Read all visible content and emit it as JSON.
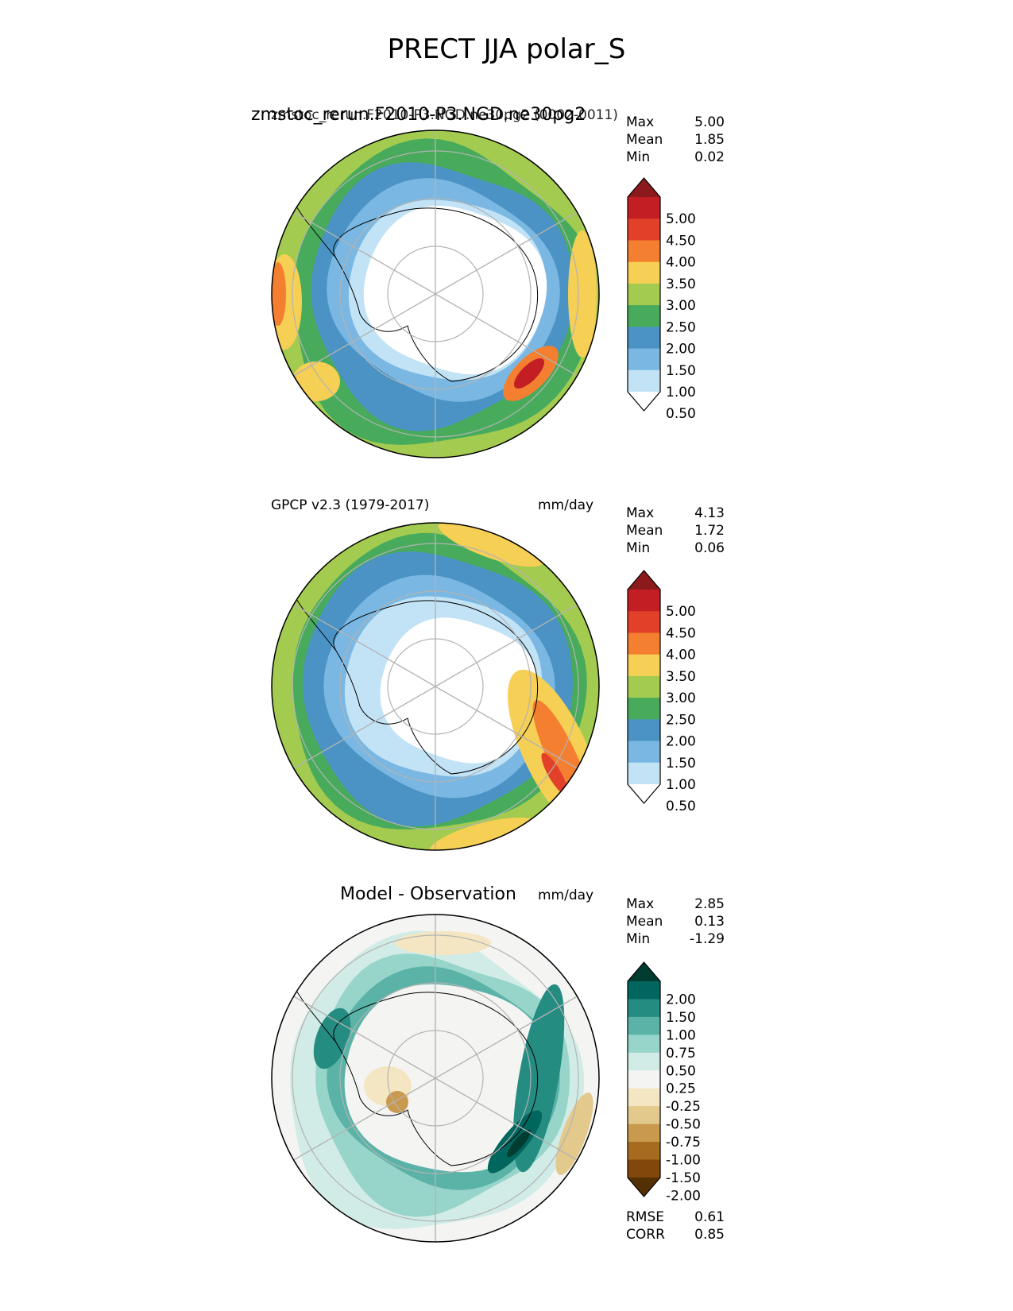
{
  "title": "PRECT JJA polar_S",
  "panels": [
    {
      "title_overlap_large": "zmstoc_rerun.F2010-P3.NGD.ne30pg2",
      "title_overlap_small": "zmstoc_rerun.F2010-P3.NGD.ne30pg2 (0002-0011)",
      "left_label": "",
      "units": "mm/day",
      "stats": [
        {
          "label": "Max",
          "value": "5.00"
        },
        {
          "label": "Mean",
          "value": "1.85"
        },
        {
          "label": "Min",
          "value": "0.02"
        }
      ],
      "colorbar": {
        "ticks": [
          "5.00",
          "4.50",
          "4.00",
          "3.50",
          "3.00",
          "2.50",
          "2.00",
          "1.50",
          "1.00",
          "0.50"
        ],
        "colors": [
          "#8c1a1d",
          "#c21e24",
          "#e3402a",
          "#f57f30",
          "#f6cf55",
          "#a3cb4f",
          "#48ab5c",
          "#4a93c4",
          "#7ab8e3",
          "#c2e3f6",
          "#ffffff"
        ]
      }
    },
    {
      "left_label": "GPCP v2.3 (1979-2017)",
      "units": "mm/day",
      "stats": [
        {
          "label": "Max",
          "value": "4.13"
        },
        {
          "label": "Mean",
          "value": "1.72"
        },
        {
          "label": "Min",
          "value": "0.06"
        }
      ],
      "colorbar": {
        "ticks": [
          "5.00",
          "4.50",
          "4.00",
          "3.50",
          "3.00",
          "2.50",
          "2.00",
          "1.50",
          "1.00",
          "0.50"
        ],
        "colors": [
          "#8c1a1d",
          "#c21e24",
          "#e3402a",
          "#f57f30",
          "#f6cf55",
          "#a3cb4f",
          "#48ab5c",
          "#4a93c4",
          "#7ab8e3",
          "#c2e3f6",
          "#ffffff"
        ]
      }
    },
    {
      "center_title": "Model - Observation",
      "units": "mm/day",
      "stats": [
        {
          "label": "Max",
          "value": "2.85"
        },
        {
          "label": "Mean",
          "value": "0.13"
        },
        {
          "label": "Min",
          "value": "-1.29"
        }
      ],
      "colorbar": {
        "ticks": [
          "2.00",
          "1.50",
          "1.00",
          "0.75",
          "0.50",
          "0.25",
          "-0.25",
          "-0.50",
          "-0.75",
          "-1.00",
          "-1.50",
          "-2.00"
        ],
        "colors": [
          "#013c30",
          "#01665e",
          "#258c82",
          "#5bb3a8",
          "#97d4c9",
          "#d1ece7",
          "#f4f4f3",
          "#f5e6c3",
          "#e3c98b",
          "#c99a4e",
          "#a66b1e",
          "#81470b",
          "#543005"
        ]
      },
      "extra_stats": [
        {
          "label": "RMSE",
          "value": "0.61"
        },
        {
          "label": "CORR",
          "value": "0.85"
        }
      ]
    }
  ],
  "chart_data": [
    {
      "type": "heatmap",
      "projection": "south-polar-stereographic",
      "title": "zmstoc_rerun.F2010-P3.NGD.ne30pg2 (0002-0011)",
      "units": "mm/day",
      "contour_levels": [
        0.5,
        1.0,
        1.5,
        2.0,
        2.5,
        3.0,
        3.5,
        4.0,
        4.5,
        5.0
      ],
      "stats": {
        "max": 5.0,
        "mean": 1.85,
        "min": 0.02
      }
    },
    {
      "type": "heatmap",
      "projection": "south-polar-stereographic",
      "title": "GPCP v2.3 (1979-2017)",
      "units": "mm/day",
      "contour_levels": [
        0.5,
        1.0,
        1.5,
        2.0,
        2.5,
        3.0,
        3.5,
        4.0,
        4.5,
        5.0
      ],
      "stats": {
        "max": 4.13,
        "mean": 1.72,
        "min": 0.06
      }
    },
    {
      "type": "heatmap",
      "projection": "south-polar-stereographic",
      "title": "Model - Observation",
      "units": "mm/day",
      "contour_levels": [
        -2.0,
        -1.5,
        -1.0,
        -0.75,
        -0.5,
        -0.25,
        0.25,
        0.5,
        0.75,
        1.0,
        1.5,
        2.0
      ],
      "stats": {
        "max": 2.85,
        "mean": 0.13,
        "min": -1.29,
        "rmse": 0.61,
        "corr": 0.85
      }
    }
  ]
}
